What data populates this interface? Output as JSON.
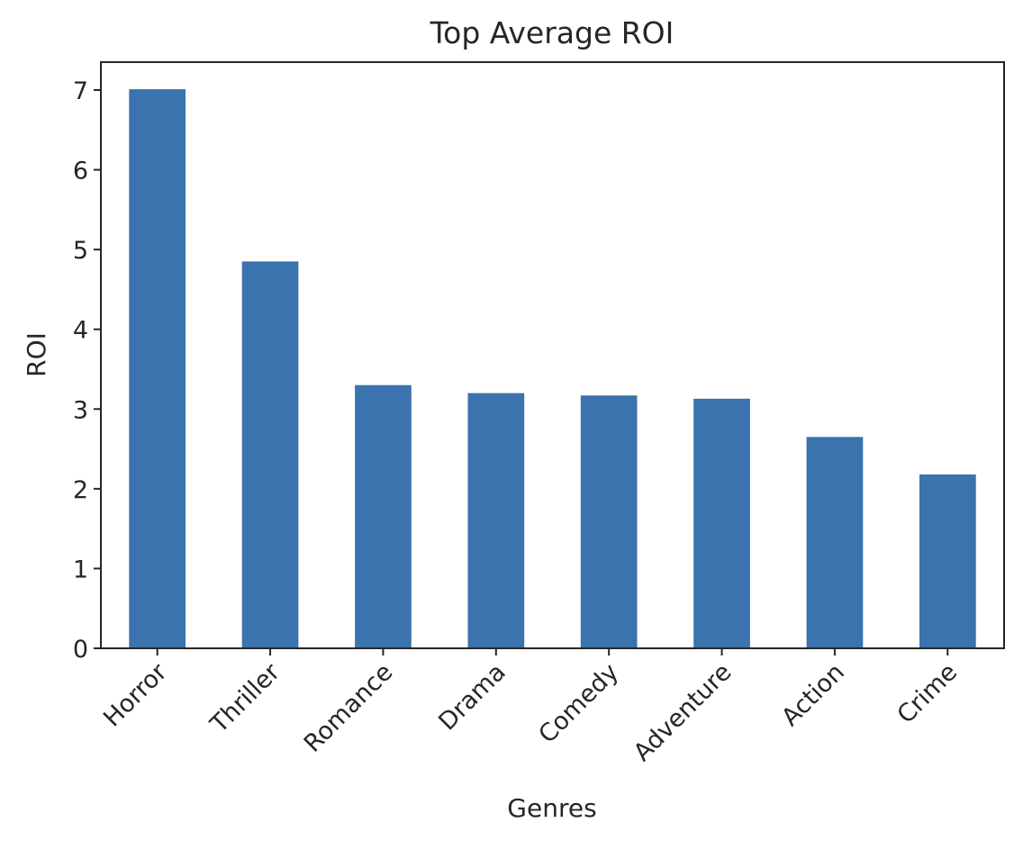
{
  "chart_data": {
    "type": "bar",
    "title": "Top Average ROI",
    "xlabel": "Genres",
    "ylabel": "ROI",
    "categories": [
      "Horror",
      "Thriller",
      "Romance",
      "Drama",
      "Comedy",
      "Adventure",
      "Action",
      "Crime"
    ],
    "values": [
      7.01,
      4.85,
      3.3,
      3.2,
      3.17,
      3.13,
      2.65,
      2.18
    ],
    "ylim": [
      0,
      7.35
    ],
    "yticks": [
      0,
      1,
      2,
      3,
      4,
      5,
      6,
      7
    ],
    "grid": false,
    "legend": false,
    "bar_color": "#3a73ad"
  }
}
